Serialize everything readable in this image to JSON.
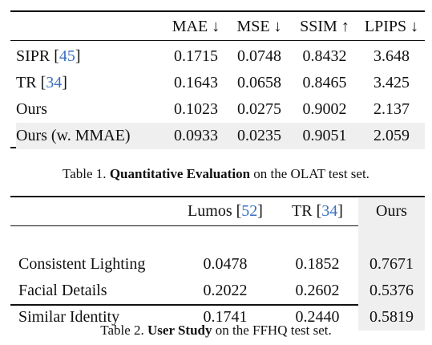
{
  "table1": {
    "headers": [
      "",
      "MAE ↓",
      "MSE ↓",
      "SSIM ↑",
      "LPIPS ↓"
    ],
    "rows": [
      {
        "method": "SIPR",
        "cite": "45",
        "values": [
          "0.1715",
          "0.0748",
          "0.8432",
          "3.648"
        ]
      },
      {
        "method": "TR",
        "cite": "34",
        "values": [
          "0.1643",
          "0.0658",
          "0.8465",
          "3.425"
        ]
      },
      {
        "method": "Ours",
        "cite": "",
        "values": [
          "0.1023",
          "0.0275",
          "0.9002",
          "2.137"
        ]
      },
      {
        "method": "Ours (w. MMAE)",
        "cite": "",
        "values": [
          "0.0933",
          "0.0235",
          "0.9051",
          "2.059"
        ]
      }
    ],
    "caption_prefix": "Table 1. ",
    "caption_bold": "Quantitative Evaluation",
    "caption_rest": " on the OLAT test set."
  },
  "table2": {
    "headers": [
      {
        "name": "",
        "cite": ""
      },
      {
        "name": "Lumos",
        "cite": "52"
      },
      {
        "name": "TR",
        "cite": "34"
      },
      {
        "name": "Ours",
        "cite": ""
      }
    ],
    "rows": [
      {
        "criterion": "Consistent Lighting",
        "values": [
          "0.0478",
          "0.1852",
          "0.7671"
        ]
      },
      {
        "criterion": "Facial Details",
        "values": [
          "0.2022",
          "0.2602",
          "0.5376"
        ]
      },
      {
        "criterion": "Similar Identity",
        "values": [
          "0.1741",
          "0.2440",
          "0.5819"
        ]
      }
    ],
    "caption_prefix": "Table 2. ",
    "caption_bold": "User Study",
    "caption_rest": " on the FFHQ test set."
  }
}
